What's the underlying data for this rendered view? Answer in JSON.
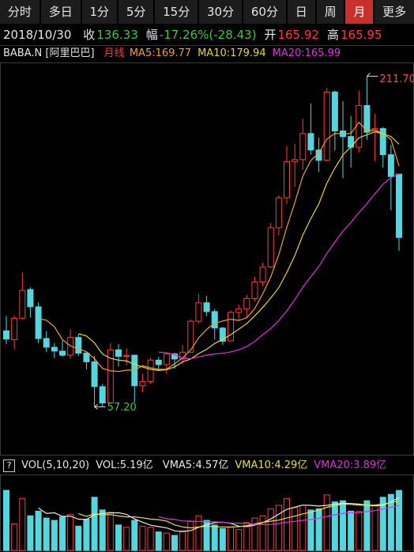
{
  "tabs": {
    "items": [
      "分时",
      "多日",
      "1分",
      "5分",
      "15分",
      "30分",
      "60分",
      "日",
      "周",
      "月",
      "更多"
    ],
    "selected": 9
  },
  "quote": {
    "date": "2018/10/30",
    "items": [
      {
        "label": "收",
        "value": "136.33",
        "color": "#3ec83e"
      },
      {
        "label": "幅",
        "value": "-17.26%(-28.43)",
        "color": "#3ec83e"
      },
      {
        "label": "开",
        "value": "165.92",
        "color": "#ff3b3b"
      },
      {
        "label": "高",
        "value": "165.95",
        "color": "#ff3b3b"
      }
    ]
  },
  "chart_data": [
    {
      "type": "candlestick",
      "title": "BABA.N [阿里巴巴]",
      "subtitle": "月线",
      "open": [
        92.7,
        88.6,
        98.6,
        112.0,
        103.9,
        89.1,
        85.0,
        83.2,
        81.3,
        89.6,
        82.3,
        78.2,
        66.6,
        59.0,
        83.8,
        80.8,
        81.3,
        67.0,
        69.0,
        79.0,
        76.9,
        81.9,
        79.5,
        82.7,
        97.2,
        105.8,
        101.7,
        94.0,
        88.0,
        101.3,
        102.9,
        107.8,
        115.5,
        122.5,
        140.9,
        154.9,
        171.8,
        172.7,
        184.9,
        177.2,
        172.4,
        204.3,
        186.1,
        183.5,
        178.5,
        198.0,
        185.5,
        187.2,
        175.0,
        165.92
      ],
      "high": [
        99.7,
        99.8,
        120.0,
        113.0,
        106.0,
        92.5,
        87.0,
        88.0,
        93.5,
        91.0,
        83.0,
        81.0,
        68.0,
        87.0,
        86.5,
        84.5,
        81.5,
        72.6,
        80.0,
        80.5,
        82.5,
        82.5,
        86.0,
        98.0,
        109.9,
        109.0,
        103.0,
        94.5,
        102.3,
        105.0,
        109.5,
        118.0,
        124.5,
        143.0,
        156.0,
        179.0,
        180.0,
        191.8,
        199.0,
        183.0,
        206.2,
        205.0,
        200.0,
        193.0,
        205.0,
        211.7,
        194.0,
        188.0,
        179.5,
        165.95
      ],
      "low": [
        86.5,
        84.0,
        98.0,
        99.0,
        87.0,
        82.8,
        80.0,
        80.5,
        79.6,
        80.9,
        74.7,
        57.2,
        57.4,
        58.5,
        76.0,
        76.5,
        59.3,
        64.0,
        68.0,
        74.8,
        72.5,
        75.0,
        77.0,
        82.5,
        96.0,
        99.5,
        88.6,
        86.0,
        87.5,
        98.0,
        99.0,
        106.5,
        113.5,
        122.0,
        137.5,
        152.0,
        160.0,
        168.0,
        175.0,
        167.0,
        172.0,
        177.0,
        164.0,
        169.0,
        176.0,
        182.0,
        172.0,
        169.0,
        149.0,
        130.06
      ],
      "close": [
        88.85,
        98.6,
        111.6,
        103.94,
        89.08,
        85.04,
        83.24,
        81.29,
        89.6,
        82.27,
        78.22,
        66.64,
        58.97,
        83.84,
        80.79,
        81.27,
        67.03,
        69.0,
        79.03,
        76.91,
        81.9,
        79.53,
        82.7,
        97.2,
        105.79,
        101.69,
        94.02,
        87.81,
        101.3,
        102.86,
        107.83,
        115.5,
        122.45,
        140.9,
        154.9,
        171.8,
        172.7,
        184.9,
        177.2,
        172.4,
        204.3,
        186.1,
        183.5,
        178.5,
        198.0,
        185.5,
        187.2,
        175.0,
        164.8,
        136.33
      ],
      "high_value_labels": [
        null,
        null,
        null,
        null,
        null,
        null,
        null,
        null,
        null,
        null,
        null,
        null,
        null,
        null,
        null,
        null,
        null,
        null,
        null,
        null,
        null,
        null,
        null,
        null,
        null,
        null,
        null,
        null,
        null,
        null,
        null,
        null,
        null,
        null,
        null,
        null,
        null,
        null,
        null,
        null,
        null,
        null,
        null,
        null,
        null,
        "211.70",
        null,
        null,
        null,
        null
      ],
      "low_value_labels": [
        null,
        null,
        null,
        null,
        null,
        null,
        null,
        null,
        null,
        null,
        null,
        "57.20",
        null,
        null,
        null,
        null,
        null,
        null,
        null,
        null,
        null,
        null,
        null,
        null,
        null,
        null,
        null,
        null,
        null,
        null,
        null,
        null,
        null,
        null,
        null,
        null,
        null,
        null,
        null,
        null,
        null,
        null,
        null,
        null,
        null,
        null,
        null,
        null,
        null,
        null
      ],
      "up_color": "#ff3b3b",
      "down_color": "#54d6df",
      "high_label_color": "#ff4a4a",
      "low_label_color": "#3ec83e",
      "series": [
        {
          "name": "MA5:169.77",
          "color": "#f0a030",
          "values": [
            null,
            null,
            null,
            null,
            98.41,
            97.65,
            94.58,
            88.52,
            85.65,
            84.29,
            82.92,
            79.6,
            75.14,
            73.99,
            73.69,
            74.3,
            74.38,
            76.39,
            75.42,
            74.65,
            74.77,
            77.27,
            80.01,
            83.65,
            89.42,
            93.38,
            96.28,
            97.3,
            98.12,
            97.54,
            98.76,
            103.06,
            109.99,
            117.91,
            128.32,
            141.11,
            152.55,
            165.04,
            172.3,
            175.8,
            182.3,
            184.98,
            184.7,
            184.96,
            190.08,
            186.32,
            186.54,
            184.84,
            182.1,
            169.77
          ]
        },
        {
          "name": "MA10:179.94",
          "color": "#e8d820",
          "values": [
            null,
            null,
            null,
            null,
            null,
            null,
            null,
            null,
            null,
            91.35,
            90.29,
            87.09,
            81.83,
            79.82,
            78.99,
            78.61,
            76.99,
            75.76,
            74.71,
            74.17,
            74.54,
            75.83,
            78.2,
            79.54,
            82.04,
            84.08,
            86.78,
            88.66,
            90.89,
            93.48,
            96.07,
            99.67,
            103.65,
            108.02,
            112.93,
            119.94,
            127.81,
            137.51,
            145.1,
            152.06,
            161.71,
            168.77,
            174.87,
            178.63,
            182.94,
            184.31,
            185.76,
            184.77,
            183.53,
            179.94
          ]
        },
        {
          "name": "MA20:165.99",
          "color": "#e030e0",
          "values": [
            null,
            null,
            null,
            null,
            null,
            null,
            null,
            null,
            null,
            null,
            null,
            null,
            null,
            null,
            null,
            null,
            null,
            null,
            null,
            82.76,
            82.41,
            81.46,
            80.01,
            79.68,
            80.51,
            81.35,
            81.88,
            82.21,
            82.8,
            83.83,
            85.31,
            87.75,
            90.92,
            93.78,
            97.48,
            102.01,
            107.29,
            113.09,
            117.99,
            122.77,
            128.89,
            134.22,
            139.26,
            143.32,
            147.93,
            152.12,
            156.78,
            161.14,
            164.32,
            165.99
          ]
        }
      ],
      "ylim": [
        37,
        217
      ]
    },
    {
      "type": "bar",
      "help_icon": "?",
      "title": "VOL(5,10,20)",
      "name": "VOL:5.19亿",
      "values": [
        5.2,
        2.3,
        4.5,
        3.0,
        3.4,
        2.8,
        2.6,
        2.9,
        3.1,
        2.1,
        2.7,
        4.6,
        3.5,
        3.3,
        2.2,
        2.0,
        2.6,
        2.1,
        2.0,
        1.6,
        1.5,
        1.3,
        1.7,
        2.5,
        3.0,
        2.6,
        2.2,
        1.9,
        2.0,
        1.8,
        2.4,
        2.8,
        3.0,
        3.6,
        3.9,
        4.5,
        3.7,
        3.9,
        3.5,
        3.6,
        4.8,
        4.2,
        4.3,
        3.4,
        3.36,
        4.3,
        3.9,
        4.6,
        4.85,
        5.19
      ],
      "series": [
        {
          "name": "VMA5:4.57亿",
          "color": "#e8e8e8",
          "values": [
            null,
            null,
            null,
            null,
            3.68,
            3.2,
            3.26,
            2.94,
            2.96,
            2.7,
            2.68,
            3.08,
            3.2,
            3.24,
            3.26,
            3.12,
            2.72,
            2.44,
            2.18,
            2.06,
            1.96,
            1.7,
            1.62,
            1.72,
            2.0,
            2.22,
            2.4,
            2.44,
            2.34,
            2.1,
            2.06,
            2.18,
            2.4,
            2.72,
            3.14,
            3.56,
            3.74,
            3.92,
            3.9,
            3.84,
            3.9,
            4.0,
            4.08,
            4.06,
            4.01,
            3.91,
            3.85,
            3.91,
            4.2,
            4.57
          ]
        },
        {
          "name": "VMA10:4.29亿",
          "color": "#e8e030",
          "values": [
            null,
            null,
            null,
            null,
            null,
            null,
            null,
            null,
            null,
            3.19,
            2.94,
            3.17,
            3.07,
            3.1,
            2.98,
            2.9,
            2.9,
            2.82,
            2.71,
            2.66,
            2.54,
            2.21,
            2.03,
            1.95,
            2.03,
            2.09,
            2.05,
            2.03,
            2.03,
            2.05,
            2.14,
            2.29,
            2.42,
            2.53,
            2.62,
            2.81,
            2.96,
            3.16,
            3.31,
            3.49,
            3.73,
            3.87,
            4.0,
            3.98,
            3.93,
            3.91,
            3.93,
            4.0,
            4.13,
            4.29
          ]
        },
        {
          "name": "VMA20:3.89亿",
          "color": "#e030e0",
          "values": [
            null,
            null,
            null,
            null,
            null,
            null,
            null,
            null,
            null,
            null,
            null,
            null,
            null,
            null,
            null,
            null,
            null,
            null,
            null,
            2.93,
            2.74,
            2.69,
            2.55,
            2.53,
            2.51,
            2.5,
            2.48,
            2.43,
            2.37,
            2.36,
            2.34,
            2.25,
            2.23,
            2.24,
            2.33,
            2.45,
            2.51,
            2.6,
            2.67,
            2.77,
            2.94,
            3.08,
            3.21,
            3.26,
            3.27,
            3.36,
            3.44,
            3.58,
            3.72,
            3.89
          ]
        }
      ],
      "ylim": [
        0,
        6.5
      ]
    }
  ]
}
